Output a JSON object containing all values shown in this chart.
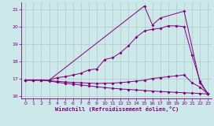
{
  "xlabel": "Windchill (Refroidissement éolien,°C)",
  "xlim": [
    -0.5,
    23.5
  ],
  "ylim": [
    15.85,
    21.4
  ],
  "yticks": [
    16,
    17,
    18,
    19,
    20,
    21
  ],
  "xticks": [
    0,
    1,
    2,
    3,
    4,
    5,
    6,
    7,
    8,
    9,
    10,
    11,
    12,
    13,
    14,
    15,
    16,
    17,
    18,
    19,
    20,
    21,
    22,
    23
  ],
  "bg_color": "#cce8e8",
  "line_color": "#800080",
  "grid_color": "#b0c8c8",
  "line1_x": [
    0,
    1,
    2,
    3,
    4,
    5,
    6,
    7,
    8,
    9,
    10,
    11,
    12,
    13,
    14,
    15,
    16,
    17,
    18,
    19,
    20,
    21,
    22,
    23
  ],
  "line1_y": [
    16.9,
    16.9,
    16.9,
    16.85,
    16.78,
    16.72,
    16.67,
    16.62,
    16.57,
    16.52,
    16.47,
    16.43,
    16.39,
    16.36,
    16.33,
    16.3,
    16.27,
    16.24,
    16.22,
    16.19,
    16.17,
    16.15,
    16.13,
    16.1
  ],
  "line2_x": [
    0,
    1,
    2,
    3,
    4,
    5,
    6,
    7,
    8,
    9,
    10,
    11,
    12,
    13,
    14,
    15,
    16,
    17,
    18,
    19,
    20,
    21,
    22,
    23
  ],
  "line2_y": [
    16.9,
    16.9,
    16.9,
    16.87,
    16.83,
    16.8,
    16.77,
    16.75,
    16.73,
    16.71,
    16.72,
    16.73,
    16.76,
    16.8,
    16.85,
    16.9,
    17.0,
    17.05,
    17.1,
    17.15,
    17.2,
    16.75,
    16.5,
    16.1
  ],
  "line3_x": [
    0,
    1,
    2,
    3,
    4,
    5,
    6,
    7,
    8,
    9,
    10,
    11,
    12,
    13,
    14,
    15,
    16,
    17,
    18,
    19,
    20,
    21,
    22,
    23
  ],
  "line3_y": [
    16.9,
    16.9,
    16.9,
    16.9,
    17.05,
    17.1,
    17.2,
    17.3,
    17.5,
    17.55,
    18.1,
    18.2,
    18.5,
    18.9,
    19.4,
    19.75,
    19.85,
    19.9,
    20.05,
    20.05,
    20.0,
    18.35,
    16.85,
    16.1
  ],
  "line4_x": [
    3,
    15,
    16,
    17,
    20,
    22,
    23
  ],
  "line4_y": [
    16.9,
    21.2,
    20.1,
    20.5,
    20.9,
    16.75,
    16.1
  ]
}
